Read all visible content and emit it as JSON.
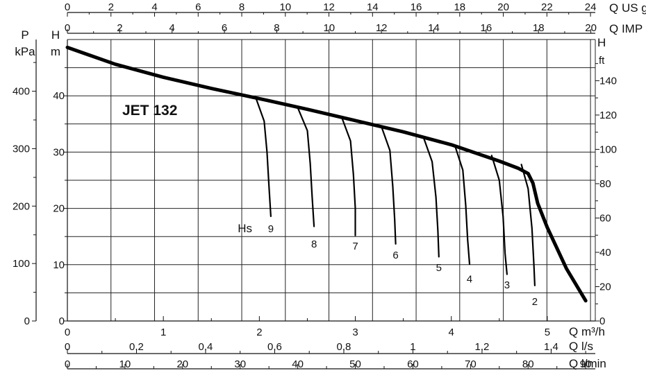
{
  "chart_data": {
    "type": "line",
    "title": "JET 132",
    "grid": true,
    "x_axes": {
      "q_m3h": {
        "label": "Q m³/h",
        "ticks": [
          "0",
          "1",
          "2",
          "3",
          "4",
          "5"
        ],
        "range": [
          0,
          5.5
        ]
      },
      "q_ls": {
        "label": "Q l/s",
        "ticks": [
          "0",
          "0,2",
          "0,4",
          "0,6",
          "0,8",
          "1",
          "1,2",
          "1,4"
        ],
        "range": [
          0,
          1.5278
        ]
      },
      "q_lmin": {
        "label": "Q l/min",
        "ticks": [
          "0",
          "10",
          "20",
          "30",
          "40",
          "50",
          "60",
          "70",
          "80",
          "90"
        ],
        "range": [
          0,
          91.67
        ]
      },
      "q_usgpm": {
        "label": "Q US gpm",
        "ticks": [
          "0",
          "2",
          "4",
          "6",
          "8",
          "10",
          "12",
          "14",
          "16",
          "18",
          "20",
          "22",
          "24"
        ],
        "range": [
          0,
          24.22
        ]
      },
      "q_impgpm": {
        "label": "Q IMP gpm",
        "ticks": [
          "0",
          "2",
          "4",
          "6",
          "8",
          "10",
          "12",
          "14",
          "16",
          "18",
          "20"
        ],
        "range": [
          0,
          20.17
        ]
      }
    },
    "y_axes": {
      "pressure_kpa": {
        "label_top": "P",
        "label_bottom": "kPa",
        "ticks": [
          "0",
          "100",
          "200",
          "300",
          "400"
        ],
        "range": [
          0,
          490
        ]
      },
      "head_m": {
        "label_top": "H",
        "label_bottom": "m",
        "ticks": [
          "0",
          "10",
          "20",
          "30",
          "40"
        ],
        "range": [
          0,
          50
        ]
      },
      "head_ft": {
        "label_top": "H",
        "label_bottom": "ft",
        "ticks": [
          "0",
          "20",
          "40",
          "60",
          "80",
          "100",
          "120",
          "140"
        ],
        "range": [
          0,
          164
        ]
      }
    },
    "series": [
      {
        "name": "",
        "x_q_m3h": [
          0,
          0.5,
          1.0,
          1.5,
          2.0,
          2.5,
          3.0,
          3.5,
          4.0,
          4.5,
          4.7,
          4.8,
          4.85,
          4.9,
          5.0,
          5.2,
          5.4
        ],
        "y_h_m": [
          48.6,
          45.6,
          43.3,
          41.3,
          39.5,
          37.6,
          35.6,
          33.6,
          31.3,
          28.4,
          27.1,
          26.2,
          24.5,
          20.9,
          16.6,
          9.3,
          3.6
        ]
      },
      {
        "name": "9",
        "x_q_m3h": [
          1.96,
          2.05,
          2.08,
          2.1,
          2.12
        ],
        "y_h_m": [
          39.8,
          35.5,
          30.0,
          24.0,
          18.6
        ]
      },
      {
        "name": "8",
        "x_q_m3h": [
          2.4,
          2.5,
          2.53,
          2.55,
          2.57
        ],
        "y_h_m": [
          37.9,
          33.8,
          28.0,
          22.0,
          16.8
        ]
      },
      {
        "name": "7",
        "x_q_m3h": [
          2.86,
          2.95,
          2.98,
          3.0,
          3.0
        ],
        "y_h_m": [
          36.1,
          32.0,
          26.0,
          20.0,
          15.2
        ]
      },
      {
        "name": "6",
        "x_q_m3h": [
          3.27,
          3.36,
          3.39,
          3.41,
          3.42
        ],
        "y_h_m": [
          34.6,
          30.3,
          24.0,
          18.0,
          13.7
        ]
      },
      {
        "name": "5",
        "x_q_m3h": [
          3.71,
          3.8,
          3.84,
          3.86,
          3.87
        ],
        "y_h_m": [
          32.6,
          28.3,
          22.0,
          16.0,
          11.4
        ]
      },
      {
        "name": "4",
        "x_q_m3h": [
          4.04,
          4.12,
          4.15,
          4.17,
          4.19
        ],
        "y_h_m": [
          31.0,
          26.8,
          20.5,
          14.5,
          10.1
        ]
      },
      {
        "name": "3",
        "x_q_m3h": [
          4.42,
          4.5,
          4.54,
          4.56,
          4.58
        ],
        "y_h_m": [
          29.4,
          25.0,
          18.5,
          12.0,
          8.3
        ]
      },
      {
        "name": "2",
        "x_q_m3h": [
          4.73,
          4.8,
          4.84,
          4.86,
          4.87
        ],
        "y_h_m": [
          27.8,
          23.5,
          16.5,
          10.0,
          6.3
        ]
      }
    ],
    "annotations": [
      {
        "text": "Hs",
        "x_q_m3h": 1.85,
        "y_h_m": 16.5
      },
      {
        "text": "9",
        "x_q_m3h": 2.12,
        "y_h_m": 16.5
      },
      {
        "text": "8",
        "x_q_m3h": 2.57,
        "y_h_m": 13.8
      },
      {
        "text": "7",
        "x_q_m3h": 3.0,
        "y_h_m": 13.4
      },
      {
        "text": "6",
        "x_q_m3h": 3.42,
        "y_h_m": 11.8
      },
      {
        "text": "5",
        "x_q_m3h": 3.87,
        "y_h_m": 9.6
      },
      {
        "text": "4",
        "x_q_m3h": 4.19,
        "y_h_m": 7.6
      },
      {
        "text": "3",
        "x_q_m3h": 4.58,
        "y_h_m": 6.5
      },
      {
        "text": "2",
        "x_q_m3h": 4.87,
        "y_h_m": 3.6
      }
    ]
  }
}
